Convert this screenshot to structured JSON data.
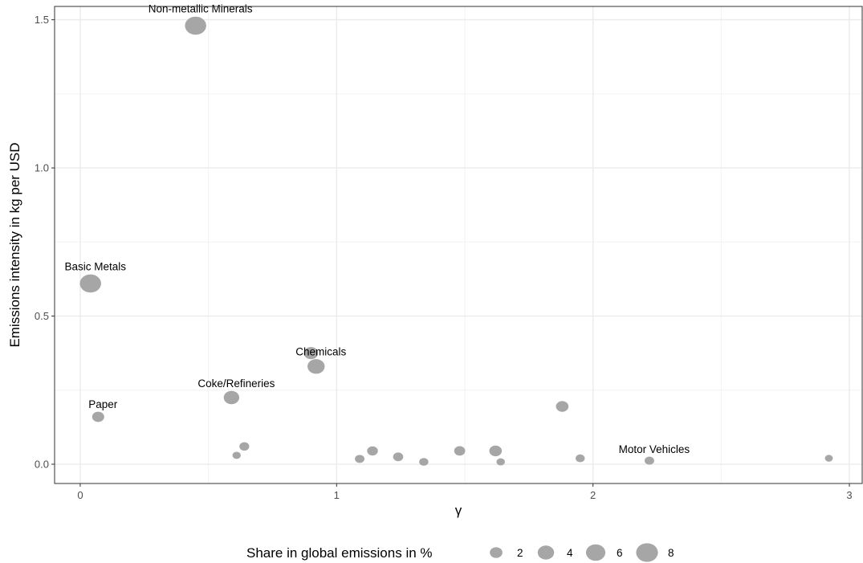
{
  "chart_data": {
    "type": "scatter",
    "xlabel": "γ",
    "ylabel": "Emissions intensity in kg per USD",
    "xlim": [
      -0.1,
      3.05
    ],
    "ylim": [
      -0.065,
      1.545
    ],
    "x_ticks": [
      0,
      1,
      2,
      3
    ],
    "x_tick_labels": [
      "0",
      "1",
      "2",
      "3"
    ],
    "y_ticks": [
      0.0,
      0.5,
      1.0,
      1.5
    ],
    "y_tick_labels": [
      "0.0",
      "0.5",
      "1.0",
      "1.5"
    ],
    "grid": true,
    "point_color": "#a6a6a6",
    "points": [
      {
        "x": 0.45,
        "y": 1.48,
        "size": 7.5,
        "label": "Non-metallic Minerals"
      },
      {
        "x": 0.04,
        "y": 0.61,
        "size": 7.5,
        "label": "Basic Metals"
      },
      {
        "x": 0.9,
        "y": 0.375,
        "size": 2.8,
        "label": ""
      },
      {
        "x": 0.92,
        "y": 0.33,
        "size": 4.5,
        "label": "Chemicals"
      },
      {
        "x": 0.59,
        "y": 0.225,
        "size": 3.5,
        "label": "Coke/Refineries"
      },
      {
        "x": 0.07,
        "y": 0.16,
        "size": 1.8,
        "label": "Paper"
      },
      {
        "x": 1.88,
        "y": 0.195,
        "size": 2.0,
        "label": ""
      },
      {
        "x": 0.64,
        "y": 0.06,
        "size": 1.0,
        "label": ""
      },
      {
        "x": 0.61,
        "y": 0.03,
        "size": 0.6,
        "label": ""
      },
      {
        "x": 1.09,
        "y": 0.018,
        "size": 0.9,
        "label": ""
      },
      {
        "x": 1.14,
        "y": 0.045,
        "size": 1.3,
        "label": ""
      },
      {
        "x": 1.24,
        "y": 0.025,
        "size": 1.1,
        "label": ""
      },
      {
        "x": 1.34,
        "y": 0.008,
        "size": 0.8,
        "label": ""
      },
      {
        "x": 1.48,
        "y": 0.045,
        "size": 1.4,
        "label": ""
      },
      {
        "x": 1.62,
        "y": 0.045,
        "size": 2.0,
        "label": ""
      },
      {
        "x": 1.64,
        "y": 0.008,
        "size": 0.6,
        "label": ""
      },
      {
        "x": 1.95,
        "y": 0.02,
        "size": 0.8,
        "label": ""
      },
      {
        "x": 2.22,
        "y": 0.012,
        "size": 0.9,
        "label": "Motor Vehicles"
      },
      {
        "x": 2.92,
        "y": 0.02,
        "size": 0.5,
        "label": ""
      }
    ],
    "legend": {
      "title": "Share in global emissions in %",
      "position": "bottom",
      "entries": [
        {
          "label": "2",
          "size": 2
        },
        {
          "label": "4",
          "size": 4
        },
        {
          "label": "6",
          "size": 6
        },
        {
          "label": "8",
          "size": 8
        }
      ]
    }
  }
}
